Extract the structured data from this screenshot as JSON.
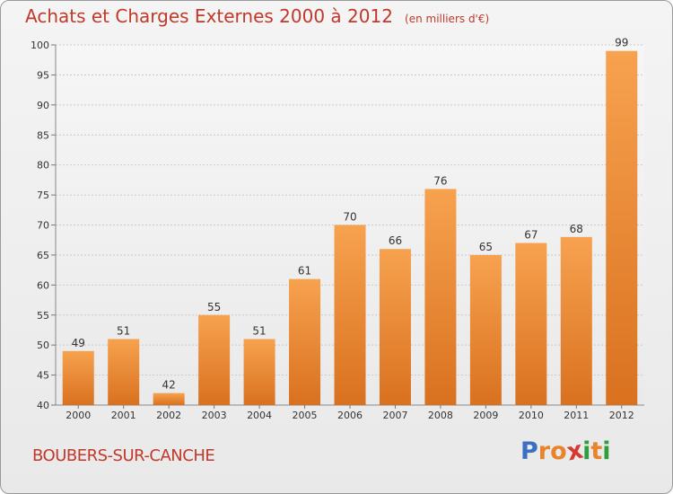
{
  "chart_data": {
    "type": "bar",
    "title": "Achats et Charges Externes 2000 à 2012",
    "subtitle": "(en milliers d'€)",
    "categories": [
      "2000",
      "2001",
      "2002",
      "2003",
      "2004",
      "2005",
      "2006",
      "2007",
      "2008",
      "2009",
      "2010",
      "2011",
      "2012"
    ],
    "values": [
      49,
      51,
      42,
      55,
      51,
      61,
      70,
      66,
      76,
      65,
      67,
      68,
      99
    ],
    "ylim": [
      40,
      100
    ],
    "yticks": [
      40,
      45,
      50,
      55,
      60,
      65,
      70,
      75,
      80,
      85,
      90,
      95,
      100
    ],
    "grid": true,
    "bar_color": "#f0913a"
  },
  "footer": {
    "city": "BOUBERS-SUR-CANCHE",
    "logo_letters": [
      "P",
      "r",
      "o",
      "x",
      "i",
      "t",
      "i"
    ],
    "logo_colors": [
      "#3b6fc2",
      "#e8842b",
      "#e8842b",
      "#d43a2f",
      "#2e9e3e",
      "#e8842b",
      "#2e9e3e"
    ]
  }
}
